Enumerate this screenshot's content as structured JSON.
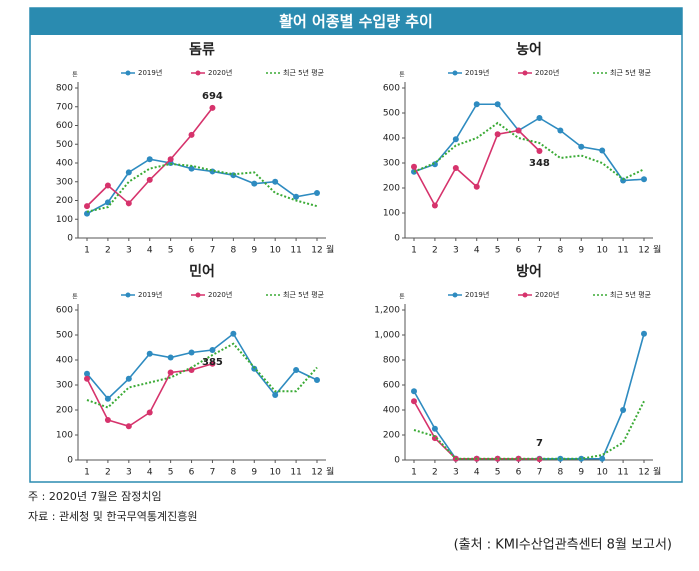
{
  "header": {
    "title": "활어 어종별 수입량 추이"
  },
  "chart_data": [
    {
      "type": "line",
      "title": "돔류",
      "y_unit": "톤",
      "x_unit": "월",
      "categories": [
        "1",
        "2",
        "3",
        "4",
        "5",
        "6",
        "7",
        "8",
        "9",
        "10",
        "11",
        "12"
      ],
      "ylim": [
        0,
        800
      ],
      "yticks": [
        0,
        100,
        200,
        300,
        400,
        500,
        600,
        700,
        800
      ],
      "series": [
        {
          "name": "2019년",
          "color": "#2e8bc0",
          "values": [
            130,
            190,
            350,
            420,
            400,
            370,
            355,
            335,
            290,
            300,
            220,
            240
          ]
        },
        {
          "name": "2020년",
          "color": "#d6336c",
          "values": [
            170,
            280,
            185,
            310,
            420,
            550,
            694,
            null,
            null,
            null,
            null,
            null
          ]
        },
        {
          "name": "최근 5년 평균",
          "color": "#3aaa35",
          "dashed": true,
          "values": [
            140,
            165,
            300,
            370,
            395,
            385,
            360,
            340,
            350,
            240,
            200,
            170
          ]
        }
      ]
    },
    {
      "type": "line",
      "title": "농어",
      "y_unit": "톤",
      "x_unit": "월",
      "categories": [
        "1",
        "2",
        "3",
        "4",
        "5",
        "6",
        "7",
        "8",
        "9",
        "10",
        "11",
        "12"
      ],
      "ylim": [
        0,
        600
      ],
      "yticks": [
        0,
        100,
        200,
        300,
        400,
        500,
        600
      ],
      "series": [
        {
          "name": "2019년",
          "color": "#2e8bc0",
          "values": [
            265,
            295,
            395,
            535,
            535,
            430,
            480,
            430,
            365,
            350,
            230,
            235
          ]
        },
        {
          "name": "2020년",
          "color": "#d6336c",
          "values": [
            285,
            130,
            280,
            205,
            415,
            430,
            348,
            null,
            null,
            null,
            null,
            null
          ]
        },
        {
          "name": "최근 5년 평균",
          "color": "#3aaa35",
          "dashed": true,
          "values": [
            265,
            300,
            370,
            400,
            460,
            400,
            380,
            320,
            330,
            300,
            235,
            275
          ]
        }
      ]
    },
    {
      "type": "line",
      "title": "민어",
      "y_unit": "톤",
      "x_unit": "월",
      "categories": [
        "1",
        "2",
        "3",
        "4",
        "5",
        "6",
        "7",
        "8",
        "9",
        "10",
        "11",
        "12"
      ],
      "ylim": [
        0,
        600
      ],
      "yticks": [
        0,
        100,
        200,
        300,
        400,
        500,
        600
      ],
      "series": [
        {
          "name": "2019년",
          "color": "#2e8bc0",
          "values": [
            345,
            245,
            325,
            425,
            410,
            430,
            440,
            505,
            365,
            260,
            360,
            320
          ]
        },
        {
          "name": "2020년",
          "color": "#d6336c",
          "values": [
            325,
            160,
            135,
            190,
            350,
            360,
            385,
            null,
            null,
            null,
            null,
            null
          ]
        },
        {
          "name": "최근 5년 평균",
          "color": "#3aaa35",
          "dashed": true,
          "values": [
            240,
            210,
            290,
            310,
            330,
            370,
            420,
            465,
            370,
            275,
            275,
            370
          ]
        }
      ]
    },
    {
      "type": "line",
      "title": "방어",
      "y_unit": "톤",
      "x_unit": "월",
      "categories": [
        "1",
        "2",
        "3",
        "4",
        "5",
        "6",
        "7",
        "8",
        "9",
        "10",
        "11",
        "12"
      ],
      "ylim": [
        0,
        1200
      ],
      "yticks": [
        0,
        200,
        400,
        600,
        800,
        {
          "value": 1000,
          "label": "1,000"
        },
        {
          "value": 1200,
          "label": "1,200"
        }
      ],
      "series": [
        {
          "name": "2019년",
          "color": "#2e8bc0",
          "values": [
            550,
            250,
            10,
            10,
            10,
            10,
            10,
            10,
            10,
            10,
            400,
            1010
          ]
        },
        {
          "name": "2020년",
          "color": "#d6336c",
          "values": [
            470,
            175,
            10,
            10,
            10,
            10,
            7,
            null,
            null,
            null,
            null,
            null
          ]
        },
        {
          "name": "최근 5년 평균",
          "color": "#3aaa35",
          "dashed": true,
          "values": [
            240,
            190,
            10,
            10,
            10,
            10,
            10,
            10,
            10,
            40,
            140,
            470
          ]
        }
      ]
    }
  ],
  "notes": [
    "주   : 2020년 7월은 잠정치임",
    "자료 : 관세청 및 한국무역통계진흥원"
  ],
  "source": "(출처 : KMI수산업관측센터 8월 보고서)"
}
